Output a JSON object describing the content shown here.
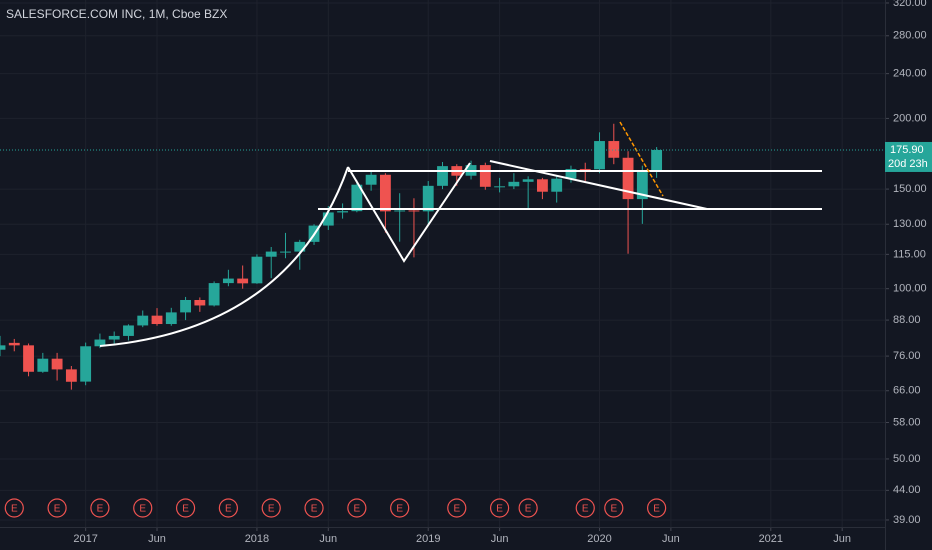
{
  "chart_data": {
    "type": "candlestick",
    "title": "SALESFORCE.COM INC, 1M, Cboe BZX",
    "yscale": "log",
    "grid": true,
    "up_color": "#26a69a",
    "down_color": "#ef5350",
    "x": [
      "2016-07",
      "2016-08",
      "2016-09",
      "2016-10",
      "2016-11",
      "2016-12",
      "2017-01",
      "2017-02",
      "2017-03",
      "2017-04",
      "2017-05",
      "2017-06",
      "2017-07",
      "2017-08",
      "2017-09",
      "2017-10",
      "2017-11",
      "2017-12",
      "2018-01",
      "2018-02",
      "2018-03",
      "2018-04",
      "2018-05",
      "2018-06",
      "2018-07",
      "2018-08",
      "2018-09",
      "2018-10",
      "2018-11",
      "2018-12",
      "2019-01",
      "2019-02",
      "2019-03",
      "2019-04",
      "2019-05",
      "2019-06",
      "2019-07",
      "2019-08",
      "2019-09",
      "2019-10",
      "2019-11",
      "2019-12",
      "2020-01",
      "2020-02",
      "2020-03",
      "2020-04",
      "2020-05"
    ],
    "open": [
      78,
      80.2,
      79.4,
      71.3,
      75.2,
      72,
      68.5,
      79.1,
      81.3,
      82.5,
      86.1,
      89.6,
      86.6,
      90.8,
      95.5,
      93.4,
      102.3,
      104.2,
      102.2,
      113.9,
      116.1,
      116.3,
      121,
      129.3,
      136.4,
      137.1,
      152.7,
      159,
      137,
      137.5,
      137,
      152,
      164.7,
      158.4,
      165.4,
      151.4,
      151.7,
      154.5,
      156.1,
      148.4,
      156.5,
      162.8,
      162.6,
      182.4,
      170.4,
      144,
      161.9
    ],
    "high": [
      82.5,
      81.5,
      80,
      77,
      77,
      73,
      80.3,
      83.3,
      84,
      86.5,
      91.5,
      92.4,
      92.5,
      96.7,
      96.5,
      103,
      108,
      109.9,
      115,
      118.5,
      125.5,
      122,
      130,
      140,
      141.5,
      155.5,
      161.2,
      160,
      147.5,
      144.5,
      155,
      167.5,
      166,
      168.4,
      167,
      157,
      160,
      158,
      157,
      158,
      165,
      167,
      189,
      195.7,
      175,
      165,
      178
    ],
    "low": [
      76,
      77.5,
      70,
      71,
      68.8,
      66.3,
      67.5,
      78.5,
      80,
      81,
      85.5,
      86,
      86,
      88,
      91,
      93,
      101,
      100,
      102,
      104.4,
      113.2,
      108,
      119.5,
      127,
      133,
      136.5,
      149,
      125.6,
      121.1,
      113.6,
      130,
      150,
      152,
      156,
      149.6,
      148,
      150,
      137.9,
      144,
      142,
      154,
      155,
      160,
      166,
      115.3,
      130.2,
      157
    ],
    "close": [
      79.4,
      79.4,
      71.3,
      75.2,
      71.99,
      68.46,
      79.1,
      81.3,
      82.5,
      86.1,
      89.6,
      86.6,
      90.8,
      95.5,
      93.4,
      102.3,
      104.2,
      102.2,
      113.9,
      116.3,
      116.3,
      121,
      129.3,
      136.4,
      137.1,
      152.7,
      159,
      137,
      137.5,
      137,
      152,
      164.7,
      158.4,
      165.4,
      151.4,
      151.7,
      154.5,
      156.1,
      148.4,
      156.5,
      162.8,
      162.6,
      182.4,
      170.4,
      144,
      161.9,
      175.9
    ],
    "xlim": [
      "2016-07",
      "2021-09"
    ],
    "xticks": [
      {
        "value": "2017-01",
        "label": "2017"
      },
      {
        "value": "2017-06",
        "label": "Jun"
      },
      {
        "value": "2018-01",
        "label": "2018"
      },
      {
        "value": "2018-06",
        "label": "Jun"
      },
      {
        "value": "2019-01",
        "label": "2019"
      },
      {
        "value": "2019-06",
        "label": "Jun"
      },
      {
        "value": "2020-01",
        "label": "2020"
      },
      {
        "value": "2020-06",
        "label": "Jun"
      },
      {
        "value": "2021-01",
        "label": "2021"
      },
      {
        "value": "2021-06",
        "label": "Jun"
      }
    ],
    "ylim": [
      37.9,
      323.9
    ],
    "yticks": [
      {
        "value": 320,
        "label": "320.00"
      },
      {
        "value": 280,
        "label": "280.00"
      },
      {
        "value": 240,
        "label": "240.00"
      },
      {
        "value": 200,
        "label": "200.00"
      },
      {
        "value": 150,
        "label": "150.00"
      },
      {
        "value": 130,
        "label": "130.00"
      },
      {
        "value": 115,
        "label": "115.00"
      },
      {
        "value": 100,
        "label": "100.00"
      },
      {
        "value": 88,
        "label": "88.00"
      },
      {
        "value": 76,
        "label": "76.00"
      },
      {
        "value": 66,
        "label": "66.00"
      },
      {
        "value": 58,
        "label": "58.00"
      },
      {
        "value": 50,
        "label": "50.00"
      },
      {
        "value": 44,
        "label": "44.00"
      },
      {
        "value": 39,
        "label": "39.00"
      }
    ],
    "last_price": {
      "value": 175.9,
      "label": "175.90"
    },
    "countdown": "20d 23h",
    "earnings": [
      {
        "x": "2016-08",
        "label": "E"
      },
      {
        "x": "2016-11",
        "label": "E"
      },
      {
        "x": "2017-02",
        "label": "E"
      },
      {
        "x": "2017-05",
        "label": "E"
      },
      {
        "x": "2017-08",
        "label": "E"
      },
      {
        "x": "2017-11",
        "label": "E"
      },
      {
        "x": "2018-02",
        "label": "E"
      },
      {
        "x": "2018-05",
        "label": "E"
      },
      {
        "x": "2018-08",
        "label": "E"
      },
      {
        "x": "2018-11",
        "label": "E"
      },
      {
        "x": "2019-03",
        "label": "E"
      },
      {
        "x": "2019-06",
        "label": "E"
      },
      {
        "x": "2019-08",
        "label": "E"
      },
      {
        "x": "2019-12",
        "label": "E"
      },
      {
        "x": "2020-02",
        "label": "E"
      },
      {
        "x": "2020-05",
        "label": "E"
      }
    ]
  }
}
